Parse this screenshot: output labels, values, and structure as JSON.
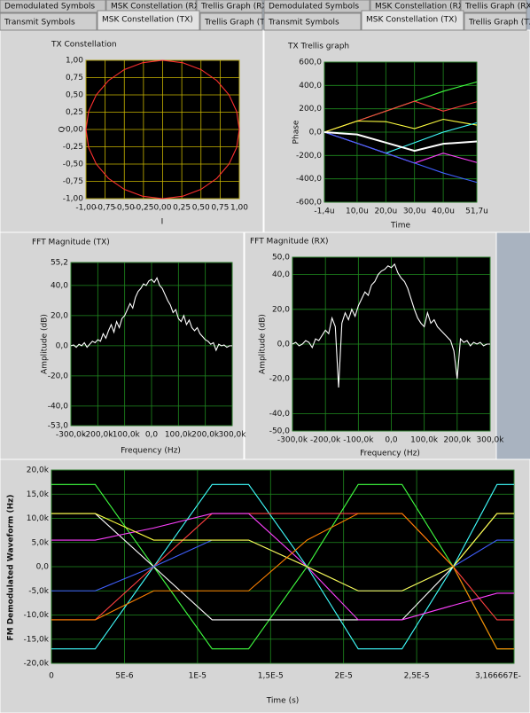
{
  "tab_groups": [
    {
      "back": [
        "Demodulated Symbols",
        "MSK Constellation (RX)",
        "Trellis Graph (RX)"
      ],
      "front": [
        "Transmit Symbols",
        "MSK Constellation (TX)",
        "Trellis Graph (TX)"
      ]
    },
    {
      "back": [
        "Demodulated Symbols",
        "MSK Constellation (RX)",
        "Trellis Graph (RX)"
      ],
      "front": [
        "Transmit Symbols",
        "MSK Constellation (TX)",
        "Trellis Graph (TX)"
      ]
    }
  ],
  "chart_data": [
    {
      "type": "line",
      "title": "TX Constellation",
      "xlabel": "I",
      "ylabel": "Q",
      "background": "#000000",
      "grid": true,
      "grid_color": "#c8b400",
      "xlim": [
        -1,
        1
      ],
      "ylim": [
        -1,
        1
      ],
      "xticks": [
        {
          "value": -1,
          "label": "-1,00"
        },
        {
          "value": -0.75,
          "label": "-0,75"
        },
        {
          "value": -0.5,
          "label": "-0,50"
        },
        {
          "value": -0.25,
          "label": "-0,25"
        },
        {
          "value": 0,
          "label": "0,00"
        },
        {
          "value": 0.25,
          "label": "0,25"
        },
        {
          "value": 0.5,
          "label": "0,50"
        },
        {
          "value": 0.75,
          "label": "0,75"
        },
        {
          "value": 1,
          "label": "1,00"
        }
      ],
      "yticks": [
        {
          "value": 1,
          "label": "1,00"
        },
        {
          "value": 0.75,
          "label": "0,75"
        },
        {
          "value": 0.5,
          "label": "0,50"
        },
        {
          "value": 0.25,
          "label": "0,25"
        },
        {
          "value": 0,
          "label": "0,00"
        },
        {
          "value": -0.25,
          "label": "-0,25"
        },
        {
          "value": -0.5,
          "label": "-0,50"
        },
        {
          "value": -0.75,
          "label": "-0,75"
        },
        {
          "value": -1,
          "label": "-1,00"
        }
      ],
      "x": [
        1,
        0.966,
        0.866,
        0.707,
        0.5,
        0.259,
        0,
        -0.259,
        -0.5,
        -0.707,
        -0.866,
        -0.966,
        -1,
        -0.966,
        -0.866,
        -0.707,
        -0.5,
        -0.259,
        0,
        0.259,
        0.5,
        0.707,
        0.866,
        0.966,
        1
      ],
      "series": [
        {
          "color": "#ff3030",
          "values": [
            0,
            0.259,
            0.5,
            0.707,
            0.866,
            0.966,
            1,
            0.966,
            0.866,
            0.707,
            0.5,
            0.259,
            0,
            -0.259,
            -0.5,
            -0.707,
            -0.866,
            -0.966,
            -1,
            -0.966,
            -0.866,
            -0.707,
            -0.5,
            -0.259,
            0
          ]
        }
      ]
    },
    {
      "type": "line",
      "title": "TX Trellis graph",
      "xlabel": "Time",
      "ylabel": "Phase",
      "background": "#000000",
      "grid": true,
      "grid_color": "#1f8a1f",
      "xlim": [
        -1.4e-06,
        5.17e-05
      ],
      "ylim": [
        -600,
        600
      ],
      "xticks": [
        {
          "value": -1.4e-06,
          "label": "-1,4u"
        },
        {
          "value": 1e-05,
          "label": "10,0u"
        },
        {
          "value": 2e-05,
          "label": "20,0u"
        },
        {
          "value": 3e-05,
          "label": "30,0u"
        },
        {
          "value": 4e-05,
          "label": "40,0u"
        },
        {
          "value": 5.17e-05,
          "label": "51,7u"
        }
      ],
      "yticks": [
        {
          "value": 600,
          "label": "600,0"
        },
        {
          "value": 400,
          "label": "400,0"
        },
        {
          "value": 200,
          "label": "200,0"
        },
        {
          "value": 0,
          "label": "0,0"
        },
        {
          "value": -200,
          "label": "-200,0"
        },
        {
          "value": -400,
          "label": "-400,0"
        },
        {
          "value": -600,
          "label": "-600,0"
        }
      ],
      "x": [
        -1.4e-06,
        1e-05,
        2e-05,
        3e-05,
        4e-05,
        5.17e-05
      ],
      "series": [
        {
          "color": "#40ff40",
          "values": [
            0,
            95,
            180,
            265,
            350,
            430
          ]
        },
        {
          "color": "#ff4040",
          "values": [
            0,
            95,
            180,
            265,
            180,
            260
          ]
        },
        {
          "color": "#ffff40",
          "values": [
            0,
            95,
            90,
            30,
            110,
            60
          ]
        },
        {
          "color": "#40ffff",
          "values": [
            0,
            -95,
            -180,
            -90,
            0,
            80
          ]
        },
        {
          "color": "#ff40ff",
          "values": [
            0,
            -95,
            -180,
            -265,
            -180,
            -260
          ]
        },
        {
          "color": "#4060ff",
          "values": [
            0,
            -95,
            -180,
            -265,
            -350,
            -430
          ]
        },
        {
          "color": "#ffffff",
          "values": [
            0,
            -20,
            -90,
            -160,
            -100,
            -80
          ]
        }
      ]
    },
    {
      "type": "line",
      "title": "FFT Magnitude (TX)",
      "xlabel": "Frequency (Hz)",
      "ylabel": "Amplitude (dB)",
      "background": "#000000",
      "grid": true,
      "grid_color": "#1f8a1f",
      "xlim": [
        -300000,
        300000
      ],
      "ylim": [
        -53,
        55.2
      ],
      "xticks": [
        {
          "value": -300000,
          "label": "-300,0k"
        },
        {
          "value": -200000,
          "label": "-200,0k"
        },
        {
          "value": -100000,
          "label": "-100,0k"
        },
        {
          "value": 0,
          "label": "0,0"
        },
        {
          "value": 100000,
          "label": "100,0k"
        },
        {
          "value": 200000,
          "label": "200,0k"
        },
        {
          "value": 300000,
          "label": "300,0k"
        }
      ],
      "yticks": [
        {
          "value": 55.2,
          "label": "55,2"
        },
        {
          "value": 40,
          "label": "40,0"
        },
        {
          "value": 20,
          "label": "20,0"
        },
        {
          "value": 0,
          "label": "0,0"
        },
        {
          "value": -20,
          "label": "-20,0"
        },
        {
          "value": -40,
          "label": "-40,0"
        },
        {
          "value": -53,
          "label": "-53,0"
        }
      ],
      "x": [
        -300000,
        -290000,
        -280000,
        -270000,
        -260000,
        -250000,
        -240000,
        -230000,
        -220000,
        -210000,
        -200000,
        -190000,
        -180000,
        -170000,
        -160000,
        -150000,
        -140000,
        -130000,
        -120000,
        -110000,
        -100000,
        -90000,
        -80000,
        -70000,
        -60000,
        -50000,
        -40000,
        -30000,
        -20000,
        -10000,
        0,
        10000,
        20000,
        30000,
        40000,
        50000,
        60000,
        70000,
        80000,
        90000,
        100000,
        110000,
        120000,
        130000,
        140000,
        150000,
        160000,
        170000,
        180000,
        190000,
        200000,
        210000,
        220000,
        230000,
        240000,
        250000,
        260000,
        270000,
        280000,
        290000,
        300000
      ],
      "series": [
        {
          "color": "#ffffff",
          "values": [
            0,
            0.5,
            -1,
            1,
            0,
            2,
            -1,
            1,
            3,
            2,
            4,
            3,
            8,
            5,
            10,
            14,
            9,
            16,
            12,
            18,
            20,
            24,
            28,
            25,
            32,
            36,
            38,
            41,
            40,
            43,
            44,
            42,
            45,
            40,
            38,
            34,
            30,
            27,
            22,
            24,
            18,
            16,
            20,
            14,
            17,
            12,
            10,
            12,
            8,
            6,
            4,
            3,
            1,
            2,
            -3,
            1,
            0,
            0.5,
            -1,
            0,
            0
          ]
        }
      ]
    },
    {
      "type": "line",
      "title": "FFT Magnitude (RX)",
      "xlabel": "Frequency (Hz)",
      "ylabel": "Amplitude (dB)",
      "background": "#000000",
      "grid": true,
      "grid_color": "#1f8a1f",
      "xlim": [
        -300000,
        300000
      ],
      "ylim": [
        -50,
        50
      ],
      "xticks": [
        {
          "value": -300000,
          "label": "-300,0k"
        },
        {
          "value": -200000,
          "label": "-200,0k"
        },
        {
          "value": -100000,
          "label": "-100,0k"
        },
        {
          "value": 0,
          "label": "0,0"
        },
        {
          "value": 100000,
          "label": "100,0k"
        },
        {
          "value": 200000,
          "label": "200,0k"
        },
        {
          "value": 300000,
          "label": "300,0k"
        }
      ],
      "yticks": [
        {
          "value": 50,
          "label": "50,0"
        },
        {
          "value": 40,
          "label": "40,0"
        },
        {
          "value": 20,
          "label": "20,0"
        },
        {
          "value": 0,
          "label": "0,0"
        },
        {
          "value": -20,
          "label": "-20,0"
        },
        {
          "value": -40,
          "label": "-40,0"
        },
        {
          "value": -50,
          "label": "-50,0"
        }
      ],
      "x": [
        -300000,
        -290000,
        -280000,
        -270000,
        -260000,
        -250000,
        -240000,
        -230000,
        -220000,
        -210000,
        -200000,
        -190000,
        -180000,
        -170000,
        -160000,
        -150000,
        -140000,
        -130000,
        -120000,
        -110000,
        -100000,
        -90000,
        -80000,
        -70000,
        -60000,
        -50000,
        -40000,
        -30000,
        -20000,
        -10000,
        0,
        10000,
        20000,
        30000,
        40000,
        50000,
        60000,
        70000,
        80000,
        90000,
        100000,
        110000,
        120000,
        130000,
        140000,
        150000,
        160000,
        170000,
        180000,
        190000,
        200000,
        210000,
        220000,
        230000,
        240000,
        250000,
        260000,
        270000,
        280000,
        290000,
        300000
      ],
      "series": [
        {
          "color": "#ffffff",
          "values": [
            0,
            1,
            -1,
            0,
            2,
            1,
            -2,
            3,
            2,
            5,
            8,
            6,
            15,
            10,
            -25,
            12,
            18,
            14,
            20,
            16,
            22,
            26,
            30,
            28,
            34,
            36,
            40,
            42,
            43,
            45,
            44,
            46,
            41,
            38,
            36,
            32,
            26,
            20,
            15,
            12,
            10,
            18,
            12,
            14,
            10,
            8,
            6,
            4,
            2,
            -4,
            -20,
            3,
            1,
            2,
            -1,
            1,
            0,
            1,
            -1,
            0,
            0
          ]
        }
      ]
    },
    {
      "type": "line",
      "xlabel": "Time (s)",
      "ylabel": "FM Demodulated Waveform (Hz)",
      "background": "#000000",
      "grid": true,
      "grid_color": "#1f8a1f",
      "xlim": [
        0,
        3.166667e-05
      ],
      "ylim": [
        -20000,
        20000
      ],
      "xticks": [
        0,
        {
          "value": 5e-06,
          "label": "5E-6"
        },
        {
          "value": 1e-05,
          "label": "1E-5"
        },
        {
          "value": 1.5e-05,
          "label": "1,5E-5"
        },
        {
          "value": 2e-05,
          "label": "2E-5"
        },
        {
          "value": 2.5e-05,
          "label": "2,5E-5"
        },
        {
          "value": 3.166667e-05,
          "label": "3,166667E-"
        }
      ],
      "yticks": [
        {
          "value": 20000,
          "label": "20,0k"
        },
        {
          "value": 15000,
          "label": "15,0k"
        },
        {
          "value": 10000,
          "label": "10,0k"
        },
        {
          "value": 5000,
          "label": "5,0k"
        },
        {
          "value": 0,
          "label": "0,0"
        },
        {
          "value": -5000,
          "label": "-5,0k"
        },
        {
          "value": -10000,
          "label": "-10,0k"
        },
        {
          "value": -15000,
          "label": "-15,0k"
        },
        {
          "value": -20000,
          "label": "-20,0k"
        }
      ],
      "x": [
        0,
        3e-06,
        7e-06,
        1.1e-05,
        1.35e-05,
        1.75e-05,
        2.1e-05,
        2.4e-05,
        2.75e-05,
        3.05e-05,
        3.166667e-05
      ],
      "series": [
        {
          "color": "#40ff40",
          "values": [
            17000,
            17000,
            0,
            -17000,
            -17000,
            0,
            17000,
            17000,
            0,
            -17000,
            -17000
          ]
        },
        {
          "color": "#40ffff",
          "values": [
            -17000,
            -17000,
            0,
            17000,
            17000,
            0,
            -17000,
            -17000,
            0,
            17000,
            17000
          ]
        },
        {
          "color": "#ffffff",
          "values": [
            11000,
            11000,
            0,
            -11000,
            -11000,
            -11000,
            -11000,
            -11000,
            0,
            11000,
            11000
          ]
        },
        {
          "color": "#ff4040",
          "values": [
            -11000,
            -11000,
            0,
            11000,
            11000,
            11000,
            11000,
            11000,
            0,
            -11000,
            -11000
          ]
        },
        {
          "color": "#ff40ff",
          "values": [
            5500,
            5500,
            8000,
            11000,
            11000,
            0,
            -11000,
            -11000,
            -8000,
            -5500,
            -5500
          ]
        },
        {
          "color": "#4060ff",
          "values": [
            -5000,
            -5000,
            0,
            5500,
            5500,
            0,
            -5000,
            -5000,
            0,
            5500,
            5500
          ]
        },
        {
          "color": "#ffff40",
          "values": [
            11000,
            11000,
            5500,
            5500,
            5500,
            0,
            -5000,
            -5000,
            0,
            11000,
            11000
          ]
        },
        {
          "color": "#ff8000",
          "values": [
            -11000,
            -11000,
            -5000,
            -5000,
            -5000,
            5500,
            11000,
            11000,
            0,
            -17000,
            -17000
          ]
        }
      ]
    }
  ]
}
